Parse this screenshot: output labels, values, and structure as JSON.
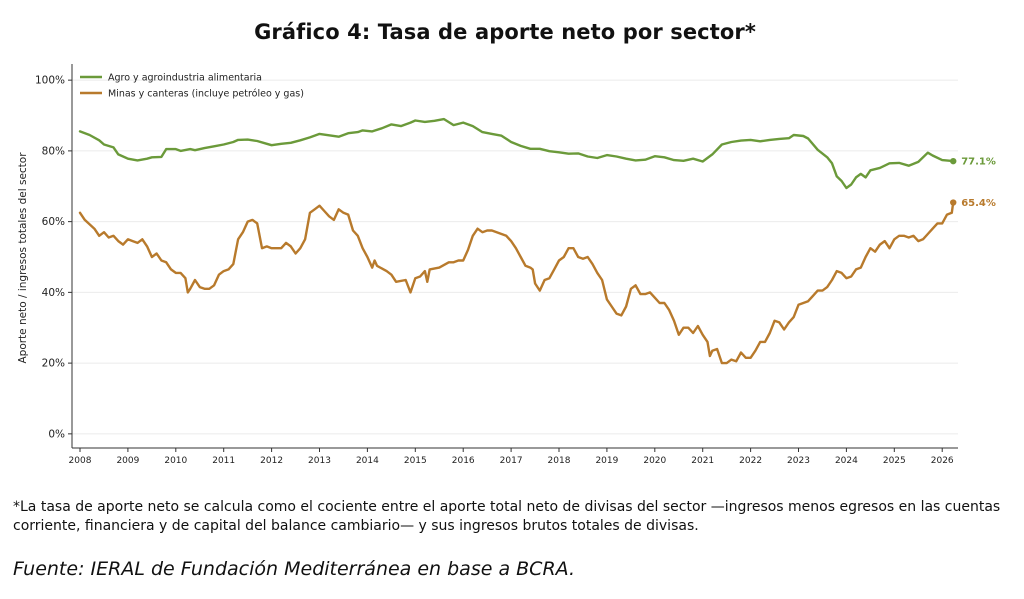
{
  "title": "Gráfico 4: Tasa de aporte neto por sector*",
  "footnote": "*La tasa de aporte neto se calcula como el cociente entre el aporte total neto de divisas del sector —ingresos menos egresos en las cuentas corriente, financiera y de capital del balance cambiario— y sus ingresos brutos totales de divisas.",
  "source": "Fuente: IERAL de Fundación Mediterránea en base a BCRA.",
  "chart_data": {
    "type": "line",
    "ylabel": "Aporte neto / ingresos totales del sector",
    "xlabel": "",
    "xlim": [
      2008.0,
      2026.45
    ],
    "ylim": [
      -4,
      104
    ],
    "yticks": [
      0,
      20,
      40,
      60,
      80,
      100
    ],
    "ytick_labels": [
      "0%",
      "20%",
      "40%",
      "60%",
      "80%",
      "100%"
    ],
    "xticks": [
      "2008",
      "2009",
      "2010",
      "2011",
      "2012",
      "2013",
      "2014",
      "2015",
      "2016",
      "2017",
      "2018",
      "2019",
      "2020",
      "2021",
      "2022",
      "2023",
      "2024",
      "2025",
      "2026"
    ],
    "grid": "horizontal",
    "legend_position": "top-left",
    "series": [
      {
        "name": "Agro y agroindustria alimentaria",
        "color": "#6b9a3a",
        "end_label": "77.1%",
        "points": [
          [
            2008.0,
            85.5
          ],
          [
            2008.2,
            84.5
          ],
          [
            2008.4,
            83
          ],
          [
            2008.5,
            81.8
          ],
          [
            2008.7,
            81
          ],
          [
            2008.8,
            79
          ],
          [
            2009.0,
            77.8
          ],
          [
            2009.2,
            77.3
          ],
          [
            2009.4,
            77.8
          ],
          [
            2009.5,
            78.2
          ],
          [
            2009.7,
            78.3
          ],
          [
            2009.8,
            80.5
          ],
          [
            2010.0,
            80.5
          ],
          [
            2010.1,
            80
          ],
          [
            2010.3,
            80.5
          ],
          [
            2010.4,
            80.2
          ],
          [
            2010.6,
            80.8
          ],
          [
            2010.8,
            81.3
          ],
          [
            2011.0,
            81.8
          ],
          [
            2011.2,
            82.5
          ],
          [
            2011.3,
            83.1
          ],
          [
            2011.5,
            83.2
          ],
          [
            2011.7,
            82.8
          ],
          [
            2011.9,
            82
          ],
          [
            2012.0,
            81.6
          ],
          [
            2012.2,
            82
          ],
          [
            2012.4,
            82.3
          ],
          [
            2012.6,
            83
          ],
          [
            2012.8,
            83.8
          ],
          [
            2013.0,
            84.8
          ],
          [
            2013.2,
            84.4
          ],
          [
            2013.4,
            84
          ],
          [
            2013.6,
            85
          ],
          [
            2013.8,
            85.3
          ],
          [
            2013.9,
            85.8
          ],
          [
            2014.1,
            85.5
          ],
          [
            2014.3,
            86.4
          ],
          [
            2014.5,
            87.5
          ],
          [
            2014.7,
            87
          ],
          [
            2014.9,
            88
          ],
          [
            2015.0,
            88.6
          ],
          [
            2015.2,
            88.2
          ],
          [
            2015.4,
            88.5
          ],
          [
            2015.6,
            89
          ],
          [
            2015.8,
            87.3
          ],
          [
            2016.0,
            88
          ],
          [
            2016.2,
            87
          ],
          [
            2016.4,
            85.3
          ],
          [
            2016.6,
            84.8
          ],
          [
            2016.8,
            84.3
          ],
          [
            2017.0,
            82.5
          ],
          [
            2017.2,
            81.4
          ],
          [
            2017.4,
            80.6
          ],
          [
            2017.6,
            80.6
          ],
          [
            2017.8,
            79.9
          ],
          [
            2018.0,
            79.6
          ],
          [
            2018.2,
            79.2
          ],
          [
            2018.4,
            79.3
          ],
          [
            2018.6,
            78.4
          ],
          [
            2018.8,
            78
          ],
          [
            2019.0,
            78.8
          ],
          [
            2019.2,
            78.4
          ],
          [
            2019.4,
            77.8
          ],
          [
            2019.6,
            77.3
          ],
          [
            2019.8,
            77.5
          ],
          [
            2020.0,
            78.5
          ],
          [
            2020.2,
            78.2
          ],
          [
            2020.4,
            77.4
          ],
          [
            2020.6,
            77.2
          ],
          [
            2020.8,
            77.8
          ],
          [
            2021.0,
            77
          ],
          [
            2021.2,
            79
          ],
          [
            2021.4,
            81.8
          ],
          [
            2021.6,
            82.5
          ],
          [
            2021.8,
            82.9
          ],
          [
            2022.0,
            83.1
          ],
          [
            2022.2,
            82.7
          ],
          [
            2022.4,
            83.1
          ],
          [
            2022.6,
            83.4
          ],
          [
            2022.8,
            83.6
          ],
          [
            2022.9,
            84.5
          ],
          [
            2023.1,
            84.2
          ],
          [
            2023.2,
            83.5
          ],
          [
            2023.4,
            80.3
          ],
          [
            2023.6,
            78.2
          ],
          [
            2023.7,
            76.5
          ],
          [
            2023.8,
            72.8
          ],
          [
            2023.9,
            71.5
          ],
          [
            2024.0,
            69.5
          ],
          [
            2024.1,
            70.5
          ],
          [
            2024.2,
            72.5
          ],
          [
            2024.3,
            73.5
          ],
          [
            2024.4,
            72.5
          ],
          [
            2024.5,
            74.5
          ],
          [
            2024.7,
            75.2
          ],
          [
            2024.9,
            76.5
          ],
          [
            2025.1,
            76.6
          ],
          [
            2025.3,
            75.8
          ],
          [
            2025.5,
            76.9
          ],
          [
            2025.7,
            79.5
          ],
          [
            2025.8,
            78.7
          ],
          [
            2026.0,
            77.4
          ],
          [
            2026.23,
            77.1
          ]
        ]
      },
      {
        "name": "Minas y canteras (incluye petróleo y gas)",
        "color": "#b87a2c",
        "end_label": "65.4%",
        "points": [
          [
            2008.0,
            62.5
          ],
          [
            2008.1,
            60.5
          ],
          [
            2008.3,
            58
          ],
          [
            2008.4,
            56
          ],
          [
            2008.5,
            57
          ],
          [
            2008.6,
            55.5
          ],
          [
            2008.7,
            56
          ],
          [
            2008.8,
            54.5
          ],
          [
            2008.9,
            53.5
          ],
          [
            2009.0,
            55
          ],
          [
            2009.1,
            54.5
          ],
          [
            2009.2,
            54
          ],
          [
            2009.3,
            55
          ],
          [
            2009.4,
            53
          ],
          [
            2009.5,
            50
          ],
          [
            2009.6,
            51
          ],
          [
            2009.7,
            49
          ],
          [
            2009.8,
            48.5
          ],
          [
            2009.9,
            46.5
          ],
          [
            2010.0,
            45.5
          ],
          [
            2010.1,
            45.5
          ],
          [
            2010.2,
            44
          ],
          [
            2010.25,
            40
          ],
          [
            2010.3,
            41
          ],
          [
            2010.4,
            43.5
          ],
          [
            2010.5,
            41.5
          ],
          [
            2010.6,
            41
          ],
          [
            2010.7,
            41
          ],
          [
            2010.8,
            42
          ],
          [
            2010.9,
            45
          ],
          [
            2011.0,
            46
          ],
          [
            2011.1,
            46.5
          ],
          [
            2011.2,
            48
          ],
          [
            2011.3,
            55
          ],
          [
            2011.4,
            57
          ],
          [
            2011.5,
            60
          ],
          [
            2011.6,
            60.5
          ],
          [
            2011.7,
            59.5
          ],
          [
            2011.8,
            52.5
          ],
          [
            2011.9,
            53
          ],
          [
            2012.0,
            52.5
          ],
          [
            2012.1,
            52.5
          ],
          [
            2012.2,
            52.5
          ],
          [
            2012.3,
            54
          ],
          [
            2012.4,
            53
          ],
          [
            2012.5,
            51
          ],
          [
            2012.6,
            52.5
          ],
          [
            2012.7,
            55
          ],
          [
            2012.8,
            62.5
          ],
          [
            2012.9,
            63.5
          ],
          [
            2013.0,
            64.5
          ],
          [
            2013.1,
            63
          ],
          [
            2013.2,
            61.5
          ],
          [
            2013.3,
            60.5
          ],
          [
            2013.4,
            63.5
          ],
          [
            2013.5,
            62.5
          ],
          [
            2013.6,
            62
          ],
          [
            2013.7,
            57.5
          ],
          [
            2013.8,
            56
          ],
          [
            2013.9,
            52.5
          ],
          [
            2014.0,
            50
          ],
          [
            2014.1,
            47
          ],
          [
            2014.15,
            49
          ],
          [
            2014.2,
            47.5
          ],
          [
            2014.4,
            46
          ],
          [
            2014.5,
            45
          ],
          [
            2014.6,
            43
          ],
          [
            2014.8,
            43.5
          ],
          [
            2014.9,
            40
          ],
          [
            2015.0,
            44
          ],
          [
            2015.1,
            44.5
          ],
          [
            2015.2,
            46
          ],
          [
            2015.25,
            43
          ],
          [
            2015.3,
            46.5
          ],
          [
            2015.5,
            47
          ],
          [
            2015.7,
            48.5
          ],
          [
            2015.8,
            48.5
          ],
          [
            2015.9,
            49
          ],
          [
            2016.0,
            49
          ],
          [
            2016.1,
            52
          ],
          [
            2016.2,
            56
          ],
          [
            2016.3,
            58
          ],
          [
            2016.4,
            57
          ],
          [
            2016.5,
            57.5
          ],
          [
            2016.6,
            57.5
          ],
          [
            2016.8,
            56.5
          ],
          [
            2016.9,
            56
          ],
          [
            2017.0,
            54.5
          ],
          [
            2017.1,
            52.5
          ],
          [
            2017.2,
            50
          ],
          [
            2017.3,
            47.5
          ],
          [
            2017.4,
            47
          ],
          [
            2017.45,
            46.5
          ],
          [
            2017.5,
            42.5
          ],
          [
            2017.6,
            40.5
          ],
          [
            2017.7,
            43.5
          ],
          [
            2017.8,
            44
          ],
          [
            2017.9,
            46.5
          ],
          [
            2018.0,
            49
          ],
          [
            2018.1,
            50
          ],
          [
            2018.2,
            52.5
          ],
          [
            2018.3,
            52.5
          ],
          [
            2018.4,
            50
          ],
          [
            2018.5,
            49.5
          ],
          [
            2018.6,
            50
          ],
          [
            2018.7,
            48
          ],
          [
            2018.8,
            45.5
          ],
          [
            2018.9,
            43.5
          ],
          [
            2019.0,
            38
          ],
          [
            2019.1,
            36
          ],
          [
            2019.2,
            34
          ],
          [
            2019.3,
            33.5
          ],
          [
            2019.4,
            36
          ],
          [
            2019.5,
            41
          ],
          [
            2019.6,
            42
          ],
          [
            2019.7,
            39.5
          ],
          [
            2019.8,
            39.5
          ],
          [
            2019.9,
            40
          ],
          [
            2020.0,
            38.5
          ],
          [
            2020.1,
            37
          ],
          [
            2020.2,
            37
          ],
          [
            2020.3,
            35
          ],
          [
            2020.4,
            32
          ],
          [
            2020.5,
            28
          ],
          [
            2020.6,
            30
          ],
          [
            2020.7,
            30
          ],
          [
            2020.8,
            28.5
          ],
          [
            2020.9,
            30.5
          ],
          [
            2021.0,
            28
          ],
          [
            2021.1,
            26
          ],
          [
            2021.15,
            22
          ],
          [
            2021.2,
            23.5
          ],
          [
            2021.3,
            24
          ],
          [
            2021.4,
            20
          ],
          [
            2021.5,
            20
          ],
          [
            2021.6,
            21
          ],
          [
            2021.7,
            20.5
          ],
          [
            2021.8,
            23
          ],
          [
            2021.9,
            21.5
          ],
          [
            2022.0,
            21.5
          ],
          [
            2022.1,
            23.5
          ],
          [
            2022.2,
            26
          ],
          [
            2022.3,
            26
          ],
          [
            2022.4,
            28.5
          ],
          [
            2022.5,
            32
          ],
          [
            2022.6,
            31.5
          ],
          [
            2022.7,
            29.5
          ],
          [
            2022.8,
            31.5
          ],
          [
            2022.9,
            33
          ],
          [
            2023.0,
            36.5
          ],
          [
            2023.1,
            37
          ],
          [
            2023.2,
            37.5
          ],
          [
            2023.3,
            39
          ],
          [
            2023.4,
            40.5
          ],
          [
            2023.5,
            40.5
          ],
          [
            2023.6,
            41.5
          ],
          [
            2023.7,
            43.5
          ],
          [
            2023.8,
            46
          ],
          [
            2023.9,
            45.5
          ],
          [
            2024.0,
            44
          ],
          [
            2024.1,
            44.5
          ],
          [
            2024.2,
            46.5
          ],
          [
            2024.3,
            47
          ],
          [
            2024.4,
            50
          ],
          [
            2024.5,
            52.5
          ],
          [
            2024.6,
            51.5
          ],
          [
            2024.7,
            53.5
          ],
          [
            2024.8,
            54.5
          ],
          [
            2024.9,
            52.5
          ],
          [
            2025.0,
            55
          ],
          [
            2025.1,
            56
          ],
          [
            2025.2,
            56
          ],
          [
            2025.3,
            55.5
          ],
          [
            2025.4,
            56
          ],
          [
            2025.5,
            54.5
          ],
          [
            2025.6,
            55
          ],
          [
            2025.7,
            56.5
          ],
          [
            2025.8,
            58
          ],
          [
            2025.9,
            59.5
          ],
          [
            2026.0,
            59.5
          ],
          [
            2026.1,
            62
          ],
          [
            2026.2,
            62.5
          ],
          [
            2026.23,
            65.4
          ]
        ]
      }
    ]
  }
}
